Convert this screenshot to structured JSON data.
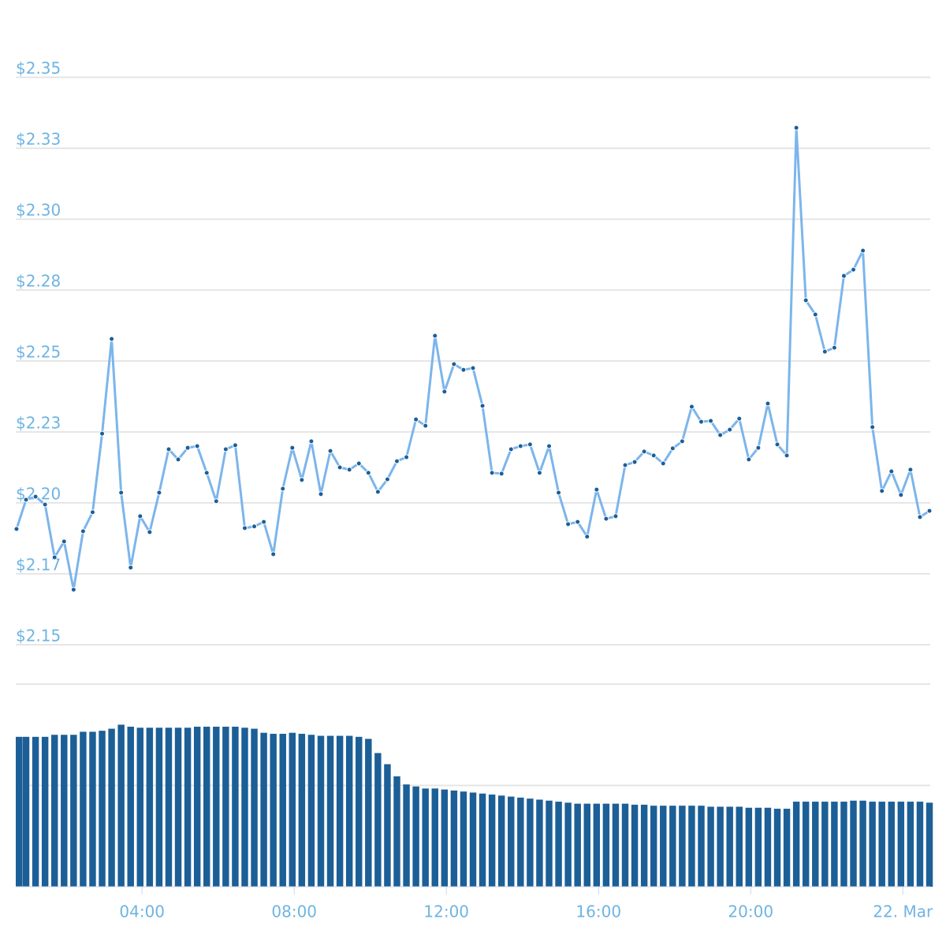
{
  "chart_data": [
    {
      "type": "line",
      "color": "#7cb5ec",
      "marker_color": "#1c5f97",
      "grid": true,
      "xlim": [
        0.68,
        24.72
      ],
      "ylim": [
        2.1361,
        2.3717
      ],
      "yticks": [
        {
          "value": 2.15,
          "label": "$2.15"
        },
        {
          "value": 2.175,
          "label": "$2.17"
        },
        {
          "value": 2.2,
          "label": "$2.20"
        },
        {
          "value": 2.225,
          "label": "$2.23"
        },
        {
          "value": 2.25,
          "label": "$2.25"
        },
        {
          "value": 2.275,
          "label": "$2.28"
        },
        {
          "value": 2.3,
          "label": "$2.30"
        },
        {
          "value": 2.325,
          "label": "$2.33"
        },
        {
          "value": 2.35,
          "label": "$2.35"
        }
      ],
      "x": [
        0.7,
        0.95,
        1.2,
        1.45,
        1.7,
        1.95,
        2.2,
        2.45,
        2.7,
        2.95,
        3.2,
        3.45,
        3.7,
        3.95,
        4.2,
        4.45,
        4.7,
        4.95,
        5.2,
        5.45,
        5.7,
        5.95,
        6.2,
        6.45,
        6.7,
        6.95,
        7.2,
        7.45,
        7.7,
        7.95,
        8.2,
        8.45,
        8.7,
        8.95,
        9.2,
        9.45,
        9.7,
        9.95,
        10.2,
        10.45,
        10.7,
        10.95,
        11.2,
        11.45,
        11.7,
        11.95,
        12.2,
        12.45,
        12.7,
        12.95,
        13.2,
        13.45,
        13.7,
        13.95,
        14.2,
        14.45,
        14.7,
        14.95,
        15.2,
        15.45,
        15.7,
        15.95,
        16.2,
        16.45,
        16.7,
        16.95,
        17.2,
        17.45,
        17.7,
        17.95,
        18.2,
        18.45,
        18.7,
        18.95,
        19.2,
        19.45,
        19.7,
        19.95,
        20.2,
        20.45,
        20.7,
        20.95,
        21.2,
        21.45,
        21.7,
        21.95,
        22.2,
        22.45,
        22.7,
        22.95,
        23.2,
        23.45,
        23.7,
        23.95,
        24.2,
        24.45,
        24.7
      ],
      "values": [
        2.1908,
        2.2011,
        2.2022,
        2.1994,
        2.1808,
        2.1864,
        2.1694,
        2.19,
        2.1967,
        2.2244,
        2.2578,
        2.2036,
        2.1772,
        2.1953,
        2.1897,
        2.2036,
        2.2189,
        2.2153,
        2.2194,
        2.22,
        2.2106,
        2.2006,
        2.2189,
        2.2203,
        2.1911,
        2.1917,
        2.1933,
        2.1819,
        2.205,
        2.2194,
        2.2081,
        2.2217,
        2.2031,
        2.2183,
        2.2125,
        2.2117,
        2.2139,
        2.2106,
        2.2039,
        2.2083,
        2.2147,
        2.2161,
        2.2294,
        2.2272,
        2.2589,
        2.2392,
        2.2489,
        2.2469,
        2.2475,
        2.2342,
        2.2106,
        2.2103,
        2.2189,
        2.22,
        2.2206,
        2.2106,
        2.22,
        2.2036,
        2.1925,
        2.1933,
        2.1881,
        2.2047,
        2.1944,
        2.1953,
        2.2133,
        2.2144,
        2.2181,
        2.2167,
        2.2139,
        2.2192,
        2.2217,
        2.2339,
        2.2286,
        2.2289,
        2.2239,
        2.2258,
        2.2297,
        2.2153,
        2.2194,
        2.235,
        2.2206,
        2.2167,
        2.3322,
        2.2714,
        2.2664,
        2.2533,
        2.2547,
        2.28,
        2.2822,
        2.2889,
        2.2267,
        2.2042,
        2.2111,
        2.2028,
        2.2117,
        2.195,
        2.1972
      ]
    },
    {
      "type": "bar",
      "color": "#1c5f97",
      "grid": true,
      "xlim": [
        0.68,
        24.72
      ],
      "ylim": [
        0,
        2
      ],
      "yticks": [
        1,
        2
      ],
      "xticks": [
        {
          "value": 4,
          "label": "04:00"
        },
        {
          "value": 8,
          "label": "08:00"
        },
        {
          "value": 12,
          "label": "12:00"
        },
        {
          "value": 16,
          "label": "16:00"
        },
        {
          "value": 20,
          "label": "20:00"
        },
        {
          "value": 24,
          "label": "22. Mar"
        }
      ],
      "x": [
        0.7,
        0.95,
        1.2,
        1.45,
        1.7,
        1.95,
        2.2,
        2.45,
        2.7,
        2.95,
        3.2,
        3.45,
        3.7,
        3.95,
        4.2,
        4.45,
        4.7,
        4.95,
        5.2,
        5.45,
        5.7,
        5.95,
        6.2,
        6.45,
        6.7,
        6.95,
        7.2,
        7.45,
        7.7,
        7.95,
        8.2,
        8.45,
        8.7,
        8.95,
        9.2,
        9.45,
        9.7,
        9.95,
        10.2,
        10.45,
        10.7,
        10.95,
        11.2,
        11.45,
        11.7,
        11.95,
        12.2,
        12.45,
        12.7,
        12.95,
        13.2,
        13.45,
        13.7,
        13.95,
        14.2,
        14.45,
        14.7,
        14.95,
        15.2,
        15.45,
        15.7,
        15.95,
        16.2,
        16.45,
        16.7,
        16.95,
        17.2,
        17.45,
        17.7,
        17.95,
        18.2,
        18.45,
        18.7,
        18.95,
        19.2,
        19.45,
        19.7,
        19.95,
        20.2,
        20.45,
        20.7,
        20.95,
        21.2,
        21.45,
        21.7,
        21.95,
        22.2,
        22.45,
        22.7,
        22.95,
        23.2,
        23.45,
        23.7,
        23.95,
        24.2,
        24.45,
        24.7
      ],
      "values": [
        1.48,
        1.48,
        1.48,
        1.48,
        1.5,
        1.5,
        1.5,
        1.53,
        1.53,
        1.54,
        1.56,
        1.6,
        1.58,
        1.57,
        1.57,
        1.57,
        1.57,
        1.57,
        1.57,
        1.58,
        1.58,
        1.58,
        1.58,
        1.58,
        1.57,
        1.56,
        1.52,
        1.51,
        1.51,
        1.52,
        1.51,
        1.5,
        1.49,
        1.49,
        1.49,
        1.49,
        1.48,
        1.46,
        1.32,
        1.21,
        1.09,
        1.01,
        0.99,
        0.97,
        0.97,
        0.96,
        0.95,
        0.94,
        0.93,
        0.92,
        0.91,
        0.9,
        0.89,
        0.88,
        0.87,
        0.86,
        0.85,
        0.84,
        0.83,
        0.82,
        0.82,
        0.82,
        0.82,
        0.82,
        0.82,
        0.81,
        0.81,
        0.8,
        0.8,
        0.8,
        0.8,
        0.8,
        0.8,
        0.79,
        0.79,
        0.79,
        0.79,
        0.78,
        0.78,
        0.78,
        0.77,
        0.77,
        0.84,
        0.84,
        0.84,
        0.84,
        0.84,
        0.84,
        0.85,
        0.85,
        0.84,
        0.84,
        0.84,
        0.84,
        0.84,
        0.84,
        0.83
      ]
    }
  ]
}
